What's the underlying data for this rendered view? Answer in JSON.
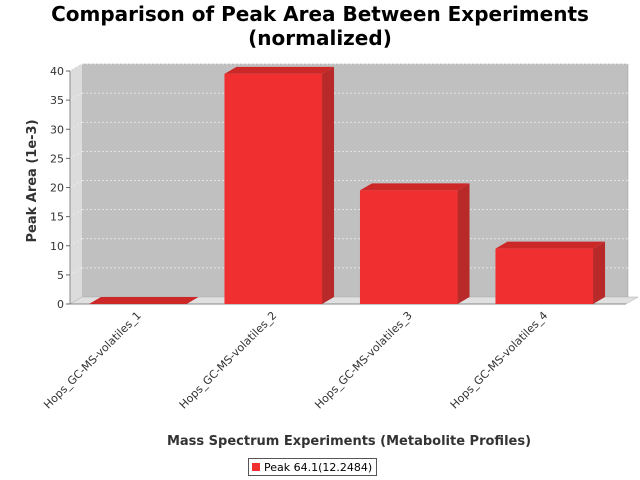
{
  "chart_data": {
    "type": "bar",
    "title_lines": [
      "Comparison of Peak Area Between Experiments",
      "(normalized)"
    ],
    "xlabel": "Mass Spectrum Experiments (Metabolite Profiles)",
    "ylabel": "Peak Area (1e-3)",
    "categories": [
      "Hops_GC-MS-volatiles_1",
      "Hops_GC-MS-volatiles_2",
      "Hops_GC-MS-volatiles_3",
      "Hops_GC-MS-volatiles_4"
    ],
    "series": [
      {
        "name": "Peak 64.1(12.2484)",
        "values": [
          0,
          39.5,
          19.5,
          9.5
        ],
        "color": "#f03030"
      }
    ],
    "ylim": [
      0,
      40
    ],
    "yticks": [
      0,
      5,
      10,
      15,
      20,
      25,
      30,
      35,
      40
    ],
    "grid": true,
    "style": "3d",
    "legend_position": "bottom"
  },
  "colors": {
    "plot_background": "#c0c0c0",
    "bar_front": "#f03030",
    "bar_side": "#b82a2a",
    "bar_top": "#cc2828",
    "gridline": "#eeeeee"
  }
}
